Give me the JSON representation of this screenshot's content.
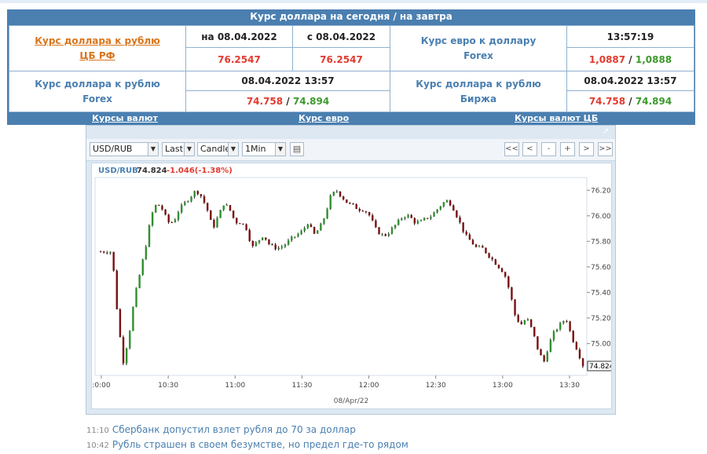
{
  "header": {
    "title": "Курс доллара на сегодня / на завтра"
  },
  "rates": {
    "cb": {
      "label_line1": "Курс доллара к рублю",
      "label_line2": "ЦБ РФ",
      "date1": "на 08.04.2022",
      "date2": "с 08.04.2022",
      "value1": "76.2547",
      "value2": "76.2547"
    },
    "eur_forex": {
      "label_line1": "Курс евро к доллару",
      "label_line2": "Forex",
      "time": "13:57:19",
      "bid": "1,0887",
      "sep": " / ",
      "ask": "1,0888"
    },
    "usd_forex": {
      "label_line1": "Курс доллара к рублю",
      "label_line2": "Forex",
      "datetime": "08.04.2022 13:57",
      "bid": "74.758",
      "sep": " / ",
      "ask": "74.894"
    },
    "usd_exchange": {
      "label_line1": "Курс доллара к рублю",
      "label_line2": "Биржа",
      "datetime": "08.04.2022 13:57",
      "bid": "74.758",
      "sep": " / ",
      "ask": "74.894"
    }
  },
  "links": {
    "currencies": "Курсы валют",
    "euro": "Курс евро",
    "cb_rates": "Курсы валют ЦБ"
  },
  "toolbar": {
    "symbol": "USD/RUB",
    "mode": "Last",
    "chart_type": "Candle",
    "interval": "1Min",
    "nav_first": "<<",
    "nav_prev": "<",
    "zoom_out": "-",
    "zoom_in": "+",
    "nav_next": ">",
    "nav_last": ">>"
  },
  "chart_info": {
    "symbol": "USD/RUB",
    "last": "74.824",
    "change": "-1.046(-1.38%)"
  },
  "chart_data": {
    "type": "candlestick",
    "x_ticks": [
      ":0:00",
      "10:30",
      "11:00",
      "11:30",
      "12:00",
      "12:30",
      "13:00",
      "13:30"
    ],
    "y_ticks": [
      76.2,
      76.0,
      75.8,
      75.6,
      75.4,
      75.2,
      75.0
    ],
    "y_tick_labels": [
      "76.200",
      "76.000",
      "75.800",
      "75.600",
      "75.400",
      "75.200",
      "75.000"
    ],
    "ylim": [
      74.75,
      76.3
    ],
    "date_label": "08/Apr/22",
    "last_label": "74.824",
    "last_value": 74.824,
    "close_path": [
      75.72,
      75.72,
      75.72,
      75.22,
      74.85,
      75.05,
      75.35,
      75.55,
      75.75,
      76.0,
      76.1,
      76.05,
      75.95,
      75.95,
      76.05,
      76.1,
      76.15,
      76.2,
      76.15,
      76.05,
      75.9,
      76.0,
      76.1,
      76.05,
      75.95,
      75.95,
      75.9,
      75.75,
      75.8,
      75.85,
      75.78,
      75.75,
      75.75,
      75.78,
      75.82,
      75.85,
      75.88,
      75.95,
      75.85,
      75.9,
      76.0,
      76.15,
      76.2,
      76.15,
      76.1,
      76.08,
      76.05,
      76.05,
      76.0,
      75.9,
      75.85,
      75.85,
      75.9,
      75.95,
      76.0,
      76.0,
      75.95,
      75.95,
      75.98,
      76.0,
      76.05,
      76.1,
      76.12,
      76.05,
      75.95,
      75.85,
      75.8,
      75.75,
      75.75,
      75.7,
      75.65,
      75.6,
      75.55,
      75.4,
      75.2,
      75.15,
      75.2,
      75.1,
      74.95,
      74.85,
      75.0,
      75.1,
      75.15,
      75.2,
      75.05,
      74.95,
      74.83
    ]
  },
  "news": [
    {
      "time": "11:10",
      "headline": "Сбербанк допустил взлет рубля до 70 за доллар"
    },
    {
      "time": "10:42",
      "headline": "Рубль страшен в своем безумстве, но предел где-то рядом"
    }
  ]
}
